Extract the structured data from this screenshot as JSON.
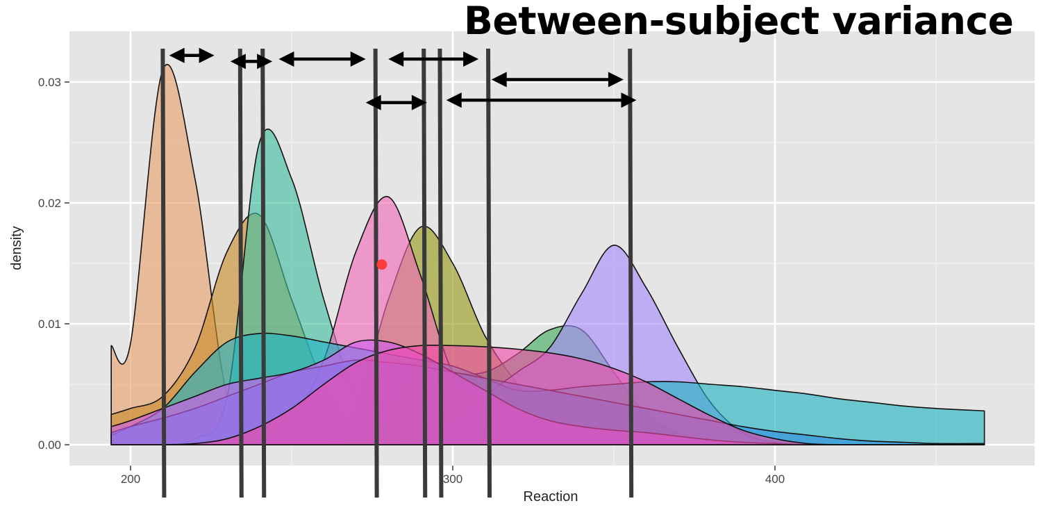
{
  "heading": "Between-subject variance",
  "chart_data": {
    "type": "area",
    "title": "",
    "xlabel": "Reaction",
    "ylabel": "density",
    "xlim": [
      194,
      465
    ],
    "ylim": [
      0,
      0.033
    ],
    "x_ticks": [
      200,
      300,
      400
    ],
    "x_tick_labels": [
      "200",
      "300",
      "400"
    ],
    "y_ticks": [
      0.0,
      0.01,
      0.02,
      0.03
    ],
    "y_tick_labels": [
      "0.00",
      "0.01",
      "0.02",
      "0.03"
    ],
    "grid": true,
    "legend": "none",
    "x": [
      194,
      200,
      210,
      220,
      230,
      240,
      250,
      260,
      270,
      280,
      290,
      300,
      310,
      320,
      330,
      340,
      350,
      360,
      370,
      380,
      390,
      400,
      410,
      420,
      430,
      440,
      450,
      465
    ],
    "series": [
      {
        "color": "#e8a06a",
        "values": [
          0.0082,
          0.0084,
          0.031,
          0.022,
          0.004,
          0.0015,
          0.0005,
          0.0001,
          0,
          0,
          0,
          0,
          0,
          0,
          0,
          0,
          0,
          0,
          0,
          0,
          0,
          0,
          0,
          0,
          0,
          0,
          0,
          0
        ]
      },
      {
        "color": "#c98a2a",
        "values": [
          0.0025,
          0.003,
          0.004,
          0.008,
          0.016,
          0.019,
          0.012,
          0.005,
          0.0015,
          0.0005,
          0,
          0,
          0,
          0,
          0,
          0,
          0,
          0,
          0,
          0,
          0,
          0,
          0,
          0,
          0,
          0,
          0,
          0
        ]
      },
      {
        "color": "#3fbf9f",
        "values": [
          0,
          0,
          0,
          0.0005,
          0.004,
          0.025,
          0.022,
          0.012,
          0.004,
          0.001,
          0.0002,
          0,
          0,
          0,
          0,
          0,
          0,
          0,
          0,
          0,
          0,
          0,
          0,
          0,
          0,
          0,
          0,
          0
        ]
      },
      {
        "color": "#9a9a1a",
        "values": [
          0,
          0,
          0,
          0,
          0,
          0,
          0,
          0.0005,
          0.003,
          0.012,
          0.018,
          0.015,
          0.009,
          0.005,
          0.0015,
          0.0005,
          0,
          0,
          0,
          0,
          0,
          0,
          0,
          0,
          0,
          0,
          0,
          0
        ]
      },
      {
        "color": "#f06ab9",
        "values": [
          0,
          0,
          0,
          0,
          0,
          0.0002,
          0.002,
          0.007,
          0.016,
          0.0205,
          0.014,
          0.006,
          0.004,
          0.0025,
          0.0012,
          0.0005,
          0,
          0,
          0,
          0,
          0,
          0,
          0,
          0,
          0,
          0,
          0,
          0
        ]
      },
      {
        "color": "#3fae5a",
        "values": [
          0,
          0,
          0,
          0,
          0,
          0,
          0,
          0,
          0.0005,
          0.0035,
          0.007,
          0.006,
          0.006,
          0.0075,
          0.0095,
          0.0095,
          0.006,
          0.0025,
          0.001,
          0.0003,
          0,
          0,
          0,
          0,
          0,
          0,
          0,
          0
        ]
      },
      {
        "color": "#a78bfa",
        "values": [
          0,
          0,
          0,
          0,
          0,
          0,
          0,
          0,
          0,
          0,
          0.0002,
          0.0015,
          0.004,
          0.006,
          0.008,
          0.0125,
          0.0165,
          0.013,
          0.008,
          0.0035,
          0.001,
          0.0002,
          0,
          0,
          0,
          0,
          0,
          0
        ]
      },
      {
        "color": "#22b3c4",
        "values": [
          0.0008,
          0.0015,
          0.003,
          0.006,
          0.0085,
          0.0092,
          0.009,
          0.0085,
          0.008,
          0.0075,
          0.007,
          0.0065,
          0.0055,
          0.0045,
          0.0045,
          0.0048,
          0.005,
          0.0052,
          0.0052,
          0.005,
          0.0048,
          0.0045,
          0.0042,
          0.0038,
          0.0035,
          0.0032,
          0.003,
          0.0028
        ]
      },
      {
        "color": "#2f8fe0",
        "values": [
          0.001,
          0.0015,
          0.0022,
          0.003,
          0.004,
          0.005,
          0.006,
          0.0065,
          0.007,
          0.0068,
          0.0065,
          0.006,
          0.0055,
          0.005,
          0.0045,
          0.004,
          0.0035,
          0.003,
          0.0025,
          0.002,
          0.0015,
          0.0011,
          0.0008,
          0.0005,
          0.0003,
          0.0002,
          0.0001,
          0.0001
        ]
      },
      {
        "color": "#d05cf0",
        "values": [
          0.0015,
          0.002,
          0.003,
          0.004,
          0.005,
          0.0055,
          0.006,
          0.007,
          0.0085,
          0.0085,
          0.0075,
          0.006,
          0.0045,
          0.003,
          0.002,
          0.0015,
          0.0012,
          0.001,
          0.0007,
          0.0004,
          0.0002,
          0.0001,
          0,
          0,
          0,
          0,
          0,
          0
        ]
      },
      {
        "color": "#f04aa8",
        "values": [
          0,
          0,
          0,
          0.0001,
          0.0005,
          0.0015,
          0.003,
          0.005,
          0.0068,
          0.0078,
          0.0082,
          0.0082,
          0.0081,
          0.0079,
          0.0076,
          0.0071,
          0.0063,
          0.0052,
          0.0038,
          0.0024,
          0.0012,
          0.0005,
          0.0001,
          0,
          0,
          0,
          0,
          0
        ]
      }
    ],
    "vertical_lines": [
      210,
      234,
      241,
      276,
      291,
      296,
      311,
      355
    ],
    "arrows": [
      {
        "from": 212,
        "to": 226,
        "y": 0.0322
      },
      {
        "from": 231,
        "to": 244,
        "y": 0.0317
      },
      {
        "from": 246,
        "to": 273,
        "y": 0.0319
      },
      {
        "from": 280,
        "to": 308,
        "y": 0.0319
      },
      {
        "from": 312,
        "to": 353,
        "y": 0.0302
      },
      {
        "from": 273,
        "to": 292,
        "y": 0.0283
      },
      {
        "from": 298,
        "to": 357,
        "y": 0.0285
      }
    ],
    "highlight_point": {
      "x": 278,
      "y": 0.0149,
      "color": "#ff3b3b"
    }
  }
}
